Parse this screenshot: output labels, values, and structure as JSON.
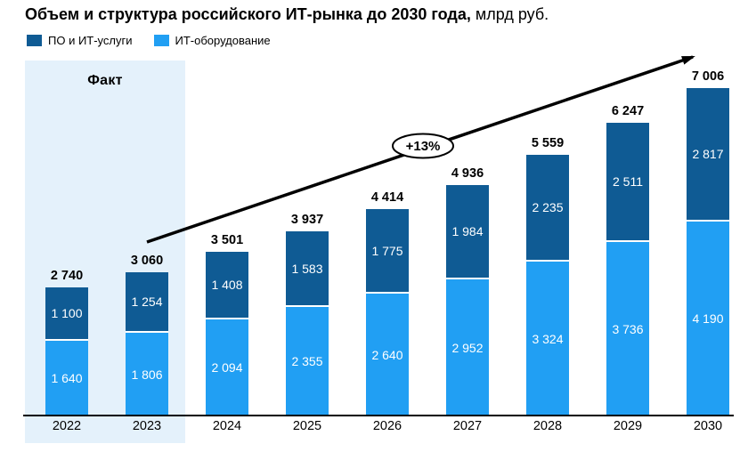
{
  "title": {
    "bold": "Объем и структура российского ИТ-рынка до 2030 года,",
    "units": " млрд руб."
  },
  "legend": [
    {
      "label": "ПО и ИТ-услуги",
      "color": "#0f5b94"
    },
    {
      "label": "ИТ-оборудование",
      "color": "#219ff3"
    }
  ],
  "fact_label": "Факт",
  "growth_label": "+13%",
  "colors": {
    "software_services": "#0f5b94",
    "hardware": "#219ff3",
    "fact_region_bg": "#e4f1fb",
    "axis": "#000000",
    "segment_value_text": "#ffffff",
    "total_value_text": "#000000"
  },
  "chart_data": {
    "type": "bar",
    "stacked": true,
    "title": "Объем и структура российского ИТ-рынка до 2030 года, млрд руб.",
    "ylabel": "млрд руб.",
    "legend_position": "top-left",
    "grid": false,
    "ylim": [
      0,
      7600
    ],
    "categories": [
      "2022",
      "2023",
      "2024",
      "2025",
      "2026",
      "2027",
      "2028",
      "2029",
      "2030"
    ],
    "series": [
      {
        "name": "ИТ-оборудование",
        "color": "#219ff3",
        "values": [
          1640,
          1806,
          2094,
          2355,
          2640,
          2952,
          3324,
          3736,
          4190
        ]
      },
      {
        "name": "ПО и ИТ-услуги",
        "color": "#0f5b94",
        "values": [
          1100,
          1254,
          1408,
          1583,
          1775,
          1984,
          2235,
          2511,
          2817
        ]
      }
    ],
    "totals": [
      2740,
      3060,
      3501,
      3937,
      4414,
      4936,
      5559,
      6247,
      7006
    ],
    "annotations": {
      "fact_region_years": [
        "2022",
        "2023"
      ],
      "fact_region_label": "Факт",
      "trend_arrow_label": "+13%"
    }
  }
}
